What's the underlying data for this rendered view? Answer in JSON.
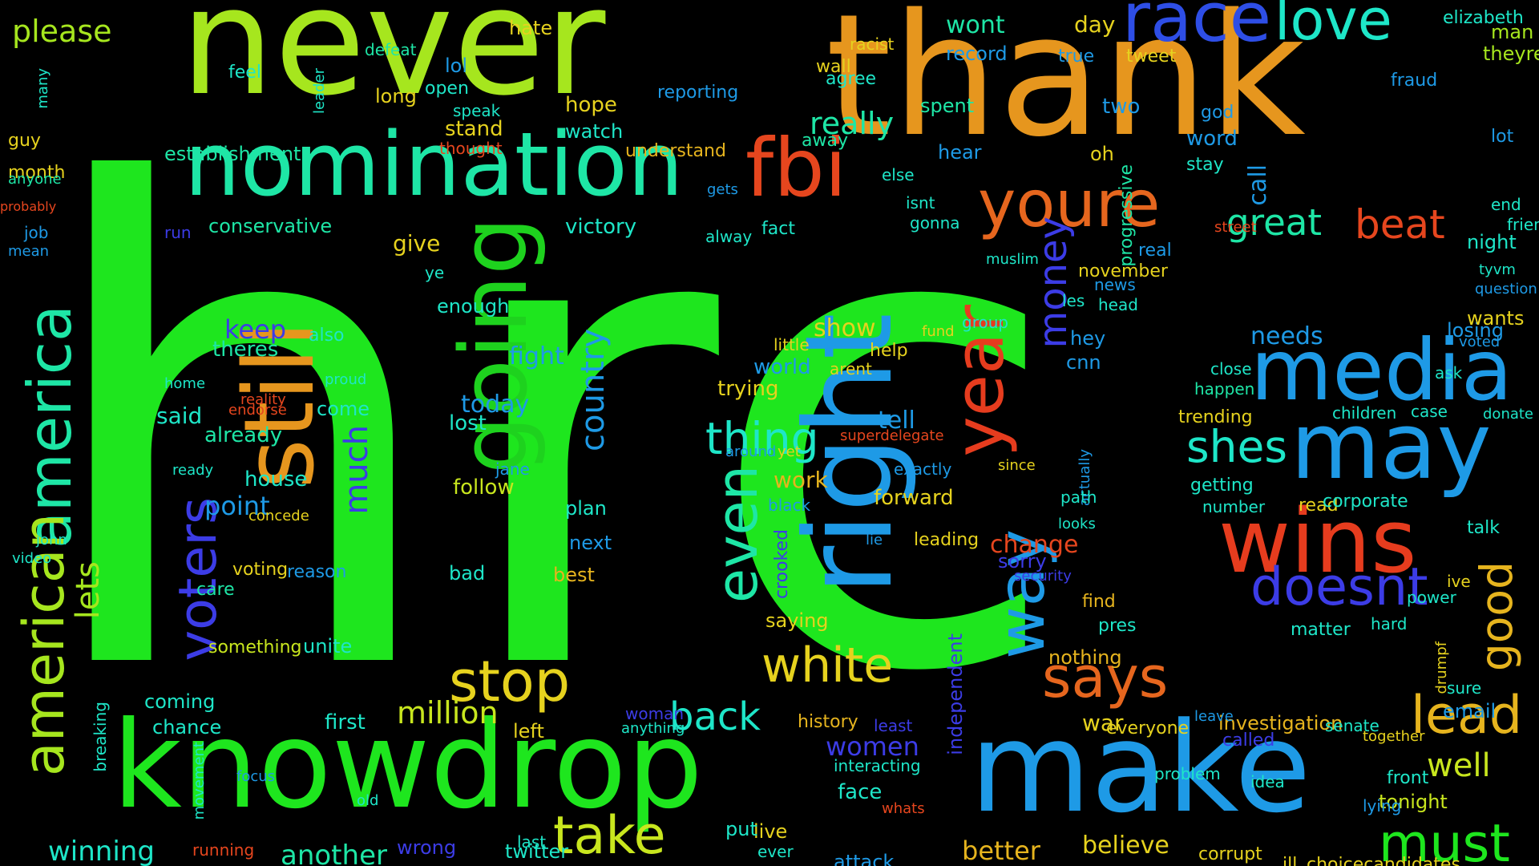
{
  "words": [
    {
      "text": "hrc",
      "color": "#1ee61e"
    },
    {
      "text": "never",
      "color": "#a6e61e"
    },
    {
      "text": "thank",
      "color": "#e6961e"
    },
    {
      "text": "nomination",
      "color": "#1ee6a6"
    },
    {
      "text": "going",
      "color": "#1ed21e"
    },
    {
      "text": "still",
      "color": "#e6961e"
    },
    {
      "text": "right",
      "color": "#1e9ae6"
    },
    {
      "text": "make",
      "color": "#1e9ae6"
    },
    {
      "text": "knowdrop",
      "color": "#1ee61e"
    },
    {
      "text": "fbi",
      "color": "#e6461e"
    },
    {
      "text": "race",
      "color": "#2e4ee6"
    },
    {
      "text": "love",
      "color": "#1ee6c8"
    },
    {
      "text": "america",
      "color": "#1ee6a6"
    },
    {
      "text": "american",
      "color": "#a6e61e"
    },
    {
      "text": "media",
      "color": "#1e9ae6"
    },
    {
      "text": "may",
      "color": "#1e9ae6"
    },
    {
      "text": "wins",
      "color": "#e63c1e"
    },
    {
      "text": "year",
      "color": "#e63c1e"
    },
    {
      "text": "way",
      "color": "#1e9ae6"
    },
    {
      "text": "even",
      "color": "#1ee6a6"
    },
    {
      "text": "youre",
      "color": "#e6661e"
    },
    {
      "text": "voters",
      "color": "#3c3ce6"
    },
    {
      "text": "stop",
      "color": "#e6d21e"
    },
    {
      "text": "take",
      "color": "#c8e61e"
    },
    {
      "text": "says",
      "color": "#e6661e"
    },
    {
      "text": "white",
      "color": "#e6d21e"
    },
    {
      "text": "lead",
      "color": "#e6b41e"
    },
    {
      "text": "must",
      "color": "#1ee61e"
    },
    {
      "text": "doesnt",
      "color": "#3c3ce6"
    },
    {
      "text": "good",
      "color": "#e6b41e"
    },
    {
      "text": "money",
      "color": "#3c3ce6"
    },
    {
      "text": "thing",
      "color": "#1ee6c8"
    },
    {
      "text": "shes",
      "color": "#1ee6c8"
    },
    {
      "text": "great",
      "color": "#1ee6a6"
    },
    {
      "text": "beat",
      "color": "#e6461e"
    },
    {
      "text": "back",
      "color": "#1ee6c8"
    },
    {
      "text": "country",
      "color": "#1e9ae6"
    },
    {
      "text": "million",
      "color": "#c8e61e"
    },
    {
      "text": "please",
      "color": "#a6e61e"
    },
    {
      "text": "lets",
      "color": "#a6e61e"
    },
    {
      "text": "much",
      "color": "#3c3ce6"
    },
    {
      "text": "well",
      "color": "#c8e61e"
    },
    {
      "text": "really",
      "color": "#1ee6a6"
    },
    {
      "text": "winning",
      "color": "#1ee6c8"
    },
    {
      "text": "another",
      "color": "#1ee6a6"
    },
    {
      "text": "better",
      "color": "#e6b41e"
    },
    {
      "text": "believe",
      "color": "#e6d21e"
    },
    {
      "text": "women",
      "color": "#3c3ce6"
    },
    {
      "text": "change",
      "color": "#e6461e"
    },
    {
      "text": "fight",
      "color": "#1e9ae6"
    },
    {
      "text": "today",
      "color": "#1e9ae6"
    },
    {
      "text": "keep",
      "color": "#3c3ce6"
    },
    {
      "text": "point",
      "color": "#1e9ae6"
    },
    {
      "text": "needs",
      "color": "#1e9ae6"
    },
    {
      "text": "show",
      "color": "#e6d21e"
    },
    {
      "text": "tell",
      "color": "#1e9ae6"
    },
    {
      "text": "work",
      "color": "#e6b41e"
    },
    {
      "text": "wont",
      "color": "#1ee6a6"
    },
    {
      "text": "day",
      "color": "#e6d21e"
    },
    {
      "text": "theyre",
      "color": "#a6e61e"
    },
    {
      "text": "man",
      "color": "#a6e61e"
    },
    {
      "text": "elizabeth",
      "color": "#1ee6c8"
    },
    {
      "text": "establishment",
      "color": "#1ee6a6"
    },
    {
      "text": "conservative",
      "color": "#1ee6a6"
    },
    {
      "text": "victory",
      "color": "#1ee6c8"
    },
    {
      "text": "give",
      "color": "#e6d21e"
    },
    {
      "text": "enough",
      "color": "#1ee6c8"
    },
    {
      "text": "lost",
      "color": "#1ee6c8"
    },
    {
      "text": "follow",
      "color": "#c8e61e"
    },
    {
      "text": "said",
      "color": "#1ee6c8"
    },
    {
      "text": "house",
      "color": "#1ee6c8"
    },
    {
      "text": "already",
      "color": "#1ee6a6"
    },
    {
      "text": "theres",
      "color": "#1ee6a6"
    },
    {
      "text": "trying",
      "color": "#e6d21e"
    },
    {
      "text": "world",
      "color": "#1e9ae6"
    },
    {
      "text": "forward",
      "color": "#e6d21e"
    },
    {
      "text": "media",
      "color": "#1e9ae6"
    },
    {
      "text": "losing",
      "color": "#1e9ae6"
    },
    {
      "text": "night",
      "color": "#1ee6c8"
    },
    {
      "text": "email",
      "color": "#1e9ae6"
    },
    {
      "text": "tonight",
      "color": "#c8e61e"
    },
    {
      "text": "investigation",
      "color": "#e6b41e"
    },
    {
      "text": "choicecandidates",
      "color": "#e6d21e"
    },
    {
      "text": "ill",
      "color": "#e6d21e"
    },
    {
      "text": "corrupt",
      "color": "#e6d21e"
    },
    {
      "text": "attack",
      "color": "#1e9ae6"
    },
    {
      "text": "twitter",
      "color": "#1ee6c8"
    },
    {
      "text": "wrong",
      "color": "#3c3ce6"
    },
    {
      "text": "nothing",
      "color": "#e6b41e"
    },
    {
      "text": "war",
      "color": "#e6d21e"
    },
    {
      "text": "everyone",
      "color": "#e6d21e"
    },
    {
      "text": "face",
      "color": "#1ee6c8"
    },
    {
      "text": "history",
      "color": "#e6b41e"
    },
    {
      "text": "leading",
      "color": "#e6d21e"
    },
    {
      "text": "sorry",
      "color": "#3c3ce6"
    },
    {
      "text": "pres",
      "color": "#1ee6c8"
    },
    {
      "text": "find",
      "color": "#e6b41e"
    },
    {
      "text": "independent",
      "color": "#3c3ce6"
    },
    {
      "text": "crooked",
      "color": "#3c3ce6"
    },
    {
      "text": "saying",
      "color": "#e6d21e"
    },
    {
      "text": "coming",
      "color": "#1ee6c8"
    },
    {
      "text": "chance",
      "color": "#1ee6c8"
    },
    {
      "text": "first",
      "color": "#1ee6c8"
    },
    {
      "text": "left",
      "color": "#e6d21e"
    },
    {
      "text": "next",
      "color": "#1e9ae6"
    },
    {
      "text": "best",
      "color": "#e6b41e"
    },
    {
      "text": "plan",
      "color": "#1ee6c8"
    },
    {
      "text": "bad",
      "color": "#1ee6c8"
    },
    {
      "text": "voting",
      "color": "#e6d21e"
    },
    {
      "text": "care",
      "color": "#1ee6a6"
    },
    {
      "text": "reason",
      "color": "#1e9ae6"
    },
    {
      "text": "unite",
      "color": "#1ee6c8"
    },
    {
      "text": "something",
      "color": "#c8e61e"
    },
    {
      "text": "come",
      "color": "#1ee6c8"
    },
    {
      "text": "also",
      "color": "#1ee6c8"
    },
    {
      "text": "hope",
      "color": "#e6d21e"
    },
    {
      "text": "stand",
      "color": "#e6d21e"
    },
    {
      "text": "watch",
      "color": "#1ee6c8"
    },
    {
      "text": "understand",
      "color": "#e6b41e"
    },
    {
      "text": "reporting",
      "color": "#1e9ae6"
    },
    {
      "text": "agree",
      "color": "#1ee6c8"
    },
    {
      "text": "away",
      "color": "#1ee6a6"
    },
    {
      "text": "spent",
      "color": "#1ee6a6"
    },
    {
      "text": "hear",
      "color": "#1e9ae6"
    },
    {
      "text": "two",
      "color": "#1e9ae6"
    },
    {
      "text": "oh",
      "color": "#e6d21e"
    },
    {
      "text": "god",
      "color": "#1e9ae6"
    },
    {
      "text": "word",
      "color": "#1e9ae6"
    },
    {
      "text": "stay",
      "color": "#1ee6c8"
    },
    {
      "text": "call",
      "color": "#1e9ae6"
    },
    {
      "text": "progressive",
      "color": "#1ee6a6"
    },
    {
      "text": "tweet",
      "color": "#e6d21e"
    },
    {
      "text": "record",
      "color": "#1e9ae6"
    },
    {
      "text": "true",
      "color": "#1e9ae6"
    },
    {
      "text": "lol",
      "color": "#1e9ae6"
    },
    {
      "text": "open",
      "color": "#1ee6c8"
    },
    {
      "text": "long",
      "color": "#e6d21e"
    },
    {
      "text": "speak",
      "color": "#1ee6c8"
    },
    {
      "text": "feel",
      "color": "#1ee6c8"
    },
    {
      "text": "defeat",
      "color": "#1ee6a6"
    },
    {
      "text": "hate",
      "color": "#e6d21e"
    },
    {
      "text": "wall",
      "color": "#e6d21e"
    },
    {
      "text": "racist",
      "color": "#e6d21e"
    },
    {
      "text": "fraud",
      "color": "#1e9ae6"
    },
    {
      "text": "lot",
      "color": "#1e9ae6"
    },
    {
      "text": "end",
      "color": "#1ee6c8"
    },
    {
      "text": "friend",
      "color": "#1ee6c8"
    },
    {
      "text": "wants",
      "color": "#e6d21e"
    },
    {
      "text": "tyvm",
      "color": "#1ee6c8"
    },
    {
      "text": "question",
      "color": "#1e9ae6"
    },
    {
      "text": "voted",
      "color": "#1e9ae6"
    },
    {
      "text": "ask",
      "color": "#1ee6c8"
    },
    {
      "text": "donate",
      "color": "#1ee6c8"
    },
    {
      "text": "case",
      "color": "#1ee6c8"
    },
    {
      "text": "talk",
      "color": "#1ee6c8"
    },
    {
      "text": "power",
      "color": "#1ee6c8"
    },
    {
      "text": "ive",
      "color": "#e6d21e"
    },
    {
      "text": "sure",
      "color": "#1ee6c8"
    },
    {
      "text": "drumpf",
      "color": "#e6d21e"
    },
    {
      "text": "matter",
      "color": "#1ee6c8"
    },
    {
      "text": "hard",
      "color": "#1ee6c8"
    },
    {
      "text": "front",
      "color": "#1ee6c8"
    },
    {
      "text": "lying",
      "color": "#1e9ae6"
    },
    {
      "text": "idea",
      "color": "#1ee6c8"
    },
    {
      "text": "problem",
      "color": "#1ee6c8"
    },
    {
      "text": "called",
      "color": "#3c3ce6"
    },
    {
      "text": "senate",
      "color": "#1ee6c8"
    },
    {
      "text": "together",
      "color": "#e6d21e"
    },
    {
      "text": "leave",
      "color": "#1e9ae6"
    },
    {
      "text": "trending",
      "color": "#e6d21e"
    },
    {
      "text": "happen",
      "color": "#1ee6a6"
    },
    {
      "text": "getting",
      "color": "#1ee6c8"
    },
    {
      "text": "number",
      "color": "#1ee6c8"
    },
    {
      "text": "read",
      "color": "#e6d21e"
    },
    {
      "text": "corporate",
      "color": "#1ee6c8"
    },
    {
      "text": "children",
      "color": "#1ee6c8"
    },
    {
      "text": "close",
      "color": "#1ee6c8"
    },
    {
      "text": "looks",
      "color": "#1ee6c8"
    },
    {
      "text": "security",
      "color": "#3c3ce6"
    },
    {
      "text": "actually",
      "color": "#1e9ae6"
    },
    {
      "text": "path",
      "color": "#1ee6c8"
    },
    {
      "text": "since",
      "color": "#e6d21e"
    },
    {
      "text": "exactly",
      "color": "#1e9ae6"
    },
    {
      "text": "superdelegate",
      "color": "#e6461e"
    },
    {
      "text": "help",
      "color": "#e6d21e"
    },
    {
      "text": "arent",
      "color": "#e6d21e"
    },
    {
      "text": "little",
      "color": "#e6d21e"
    },
    {
      "text": "group",
      "color": "#1ee6c8"
    },
    {
      "text": "fund",
      "color": "#e6d21e"
    },
    {
      "text": "hey",
      "color": "#1e9ae6"
    },
    {
      "text": "cnn",
      "color": "#1e9ae6"
    },
    {
      "text": "les",
      "color": "#1ee6c8"
    },
    {
      "text": "head",
      "color": "#1ee6c8"
    },
    {
      "text": "news",
      "color": "#1e9ae6"
    },
    {
      "text": "november",
      "color": "#e6d21e"
    },
    {
      "text": "real",
      "color": "#1e9ae6"
    },
    {
      "text": "street",
      "color": "#e6461e"
    },
    {
      "text": "gonna",
      "color": "#1ee6c8"
    },
    {
      "text": "isnt",
      "color": "#1ee6c8"
    },
    {
      "text": "else",
      "color": "#1ee6c8"
    },
    {
      "text": "gets",
      "color": "#1e9ae6"
    },
    {
      "text": "fact",
      "color": "#1ee6c8"
    },
    {
      "text": "alway",
      "color": "#1ee6c8"
    },
    {
      "text": "muslim",
      "color": "#1ee6c8"
    },
    {
      "text": "ye",
      "color": "#1ee6c8"
    },
    {
      "text": "jane",
      "color": "#1e9ae6"
    },
    {
      "text": "live",
      "color": "#e6d21e"
    },
    {
      "text": "put",
      "color": "#1ee6c8"
    },
    {
      "text": "ever",
      "color": "#1ee6c8"
    },
    {
      "text": "black",
      "color": "#1e9ae6"
    },
    {
      "text": "lie",
      "color": "#1e9ae6"
    },
    {
      "text": "around",
      "color": "#1e9ae6"
    },
    {
      "text": "yet",
      "color": "#e6d21e"
    },
    {
      "text": "woman",
      "color": "#3c3ce6"
    },
    {
      "text": "anything",
      "color": "#1ee6c8"
    },
    {
      "text": "last",
      "color": "#1ee6c8"
    },
    {
      "text": "interacting",
      "color": "#1ee6c8"
    },
    {
      "text": "least",
      "color": "#3c3ce6"
    },
    {
      "text": "whats",
      "color": "#e6461e"
    },
    {
      "text": "run",
      "color": "#3c3ce6"
    },
    {
      "text": "job",
      "color": "#1e9ae6"
    },
    {
      "text": "mean",
      "color": "#1e9ae6"
    },
    {
      "text": "month",
      "color": "#e6d21e"
    },
    {
      "text": "guy",
      "color": "#e6d21e"
    },
    {
      "text": "anyone",
      "color": "#1ee6a6"
    },
    {
      "text": "probably",
      "color": "#e6461e"
    },
    {
      "text": "many",
      "color": "#1ee6c8"
    },
    {
      "text": "john",
      "color": "#1ee6c8"
    },
    {
      "text": "video",
      "color": "#1ee6c8"
    },
    {
      "text": "breaking",
      "color": "#1ee6c8"
    },
    {
      "text": "movement",
      "color": "#1ee6c8"
    },
    {
      "text": "focus",
      "color": "#1e9ae6"
    },
    {
      "text": "old",
      "color": "#1ee6c8"
    },
    {
      "text": "running",
      "color": "#e6461e"
    },
    {
      "text": "thought",
      "color": "#e6461e"
    },
    {
      "text": "leader",
      "color": "#1ee6c8"
    },
    {
      "text": "reality",
      "color": "#e6461e"
    },
    {
      "text": "endorse",
      "color": "#e6461e"
    },
    {
      "text": "home",
      "color": "#1ee6c8"
    },
    {
      "text": "ready",
      "color": "#1ee6c8"
    },
    {
      "text": "concede",
      "color": "#e6d21e"
    },
    {
      "text": "proud",
      "color": "#1ee6c8"
    }
  ]
}
